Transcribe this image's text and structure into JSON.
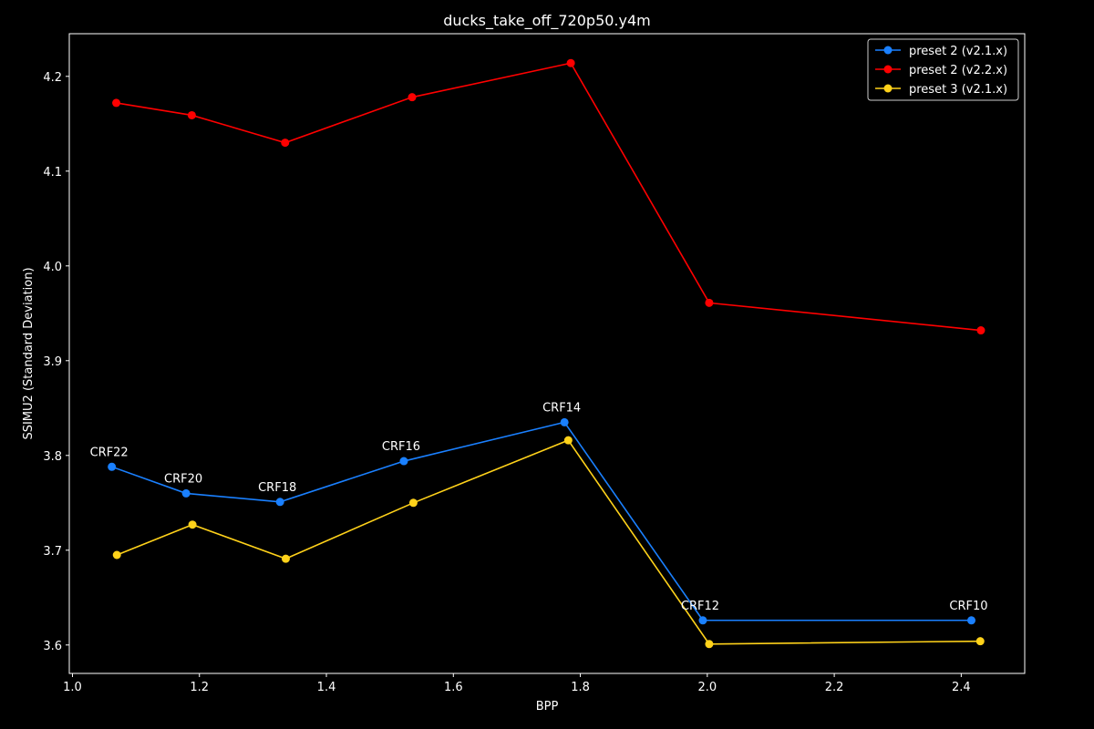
{
  "chart_data": {
    "type": "line",
    "title": "ducks_take_off_720p50.y4m",
    "xlabel": "BPP",
    "ylabel": "SSIMU2 (Standard Deviation)",
    "xlim": [
      0.995,
      2.5
    ],
    "ylim": [
      3.57,
      4.245
    ],
    "xticks": [
      1.0,
      1.2,
      1.4,
      1.6,
      1.8,
      2.0,
      2.2,
      2.4
    ],
    "xtick_labels": [
      "1.0",
      "1.2",
      "1.4",
      "1.6",
      "1.8",
      "2.0",
      "2.2",
      "2.4"
    ],
    "yticks": [
      3.6,
      3.7,
      3.8,
      3.9,
      4.0,
      4.1,
      4.2
    ],
    "ytick_labels": [
      "3.6",
      "3.7",
      "3.8",
      "3.9",
      "4.0",
      "4.1",
      "4.2"
    ],
    "grid": false,
    "legend_position": "top-right",
    "series": [
      {
        "name": "preset 2 (v2.1.x)",
        "color": "#1a80ff",
        "x": [
          1.062,
          1.179,
          1.327,
          1.522,
          1.775,
          1.993,
          2.416
        ],
        "y": [
          3.788,
          3.76,
          3.751,
          3.794,
          3.835,
          3.626,
          3.626
        ]
      },
      {
        "name": "preset 2 (v2.2.x)",
        "color": "#ff0000",
        "x": [
          1.069,
          1.188,
          1.335,
          1.535,
          1.785,
          2.003,
          2.431
        ],
        "y": [
          4.172,
          4.159,
          4.13,
          4.178,
          4.214,
          3.961,
          3.932
        ]
      },
      {
        "name": "preset 3 (v2.1.x)",
        "color": "#ffd21a",
        "x": [
          1.07,
          1.189,
          1.336,
          1.537,
          1.781,
          2.003,
          2.43
        ],
        "y": [
          3.695,
          3.727,
          3.691,
          3.75,
          3.816,
          3.601,
          3.604
        ]
      }
    ],
    "annotations": [
      {
        "text": "CRF22",
        "x": 1.062,
        "y": 3.788
      },
      {
        "text": "CRF20",
        "x": 1.179,
        "y": 3.76
      },
      {
        "text": "CRF18",
        "x": 1.327,
        "y": 3.751
      },
      {
        "text": "CRF16",
        "x": 1.522,
        "y": 3.794
      },
      {
        "text": "CRF14",
        "x": 1.775,
        "y": 3.835
      },
      {
        "text": "CRF12",
        "x": 1.993,
        "y": 3.626
      },
      {
        "text": "CRF10",
        "x": 2.416,
        "y": 3.626
      }
    ]
  }
}
